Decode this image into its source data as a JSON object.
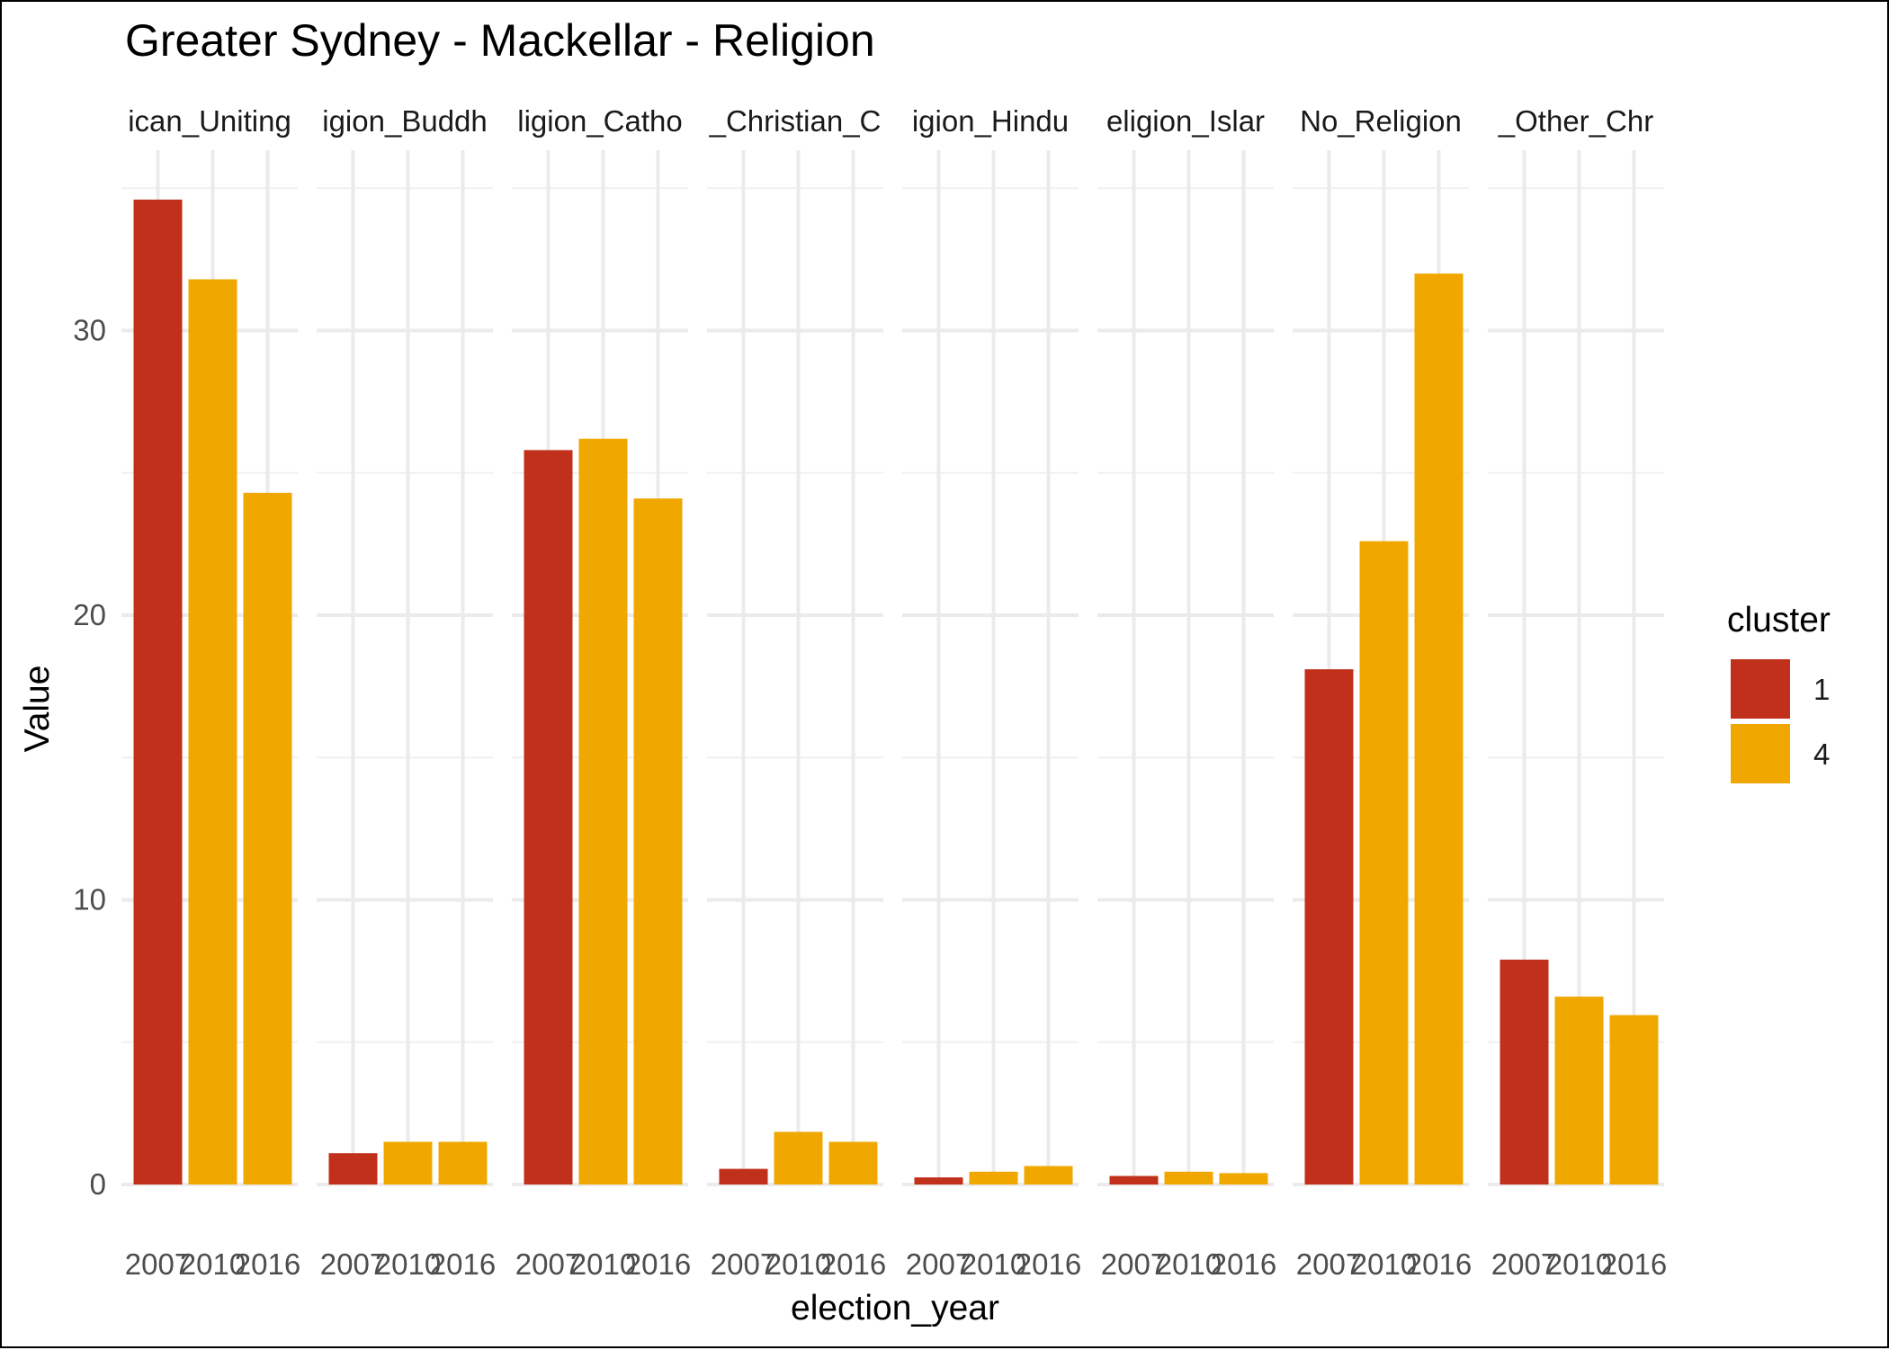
{
  "chart_data": {
    "type": "bar",
    "title": "Greater Sydney - Mackellar - Religion",
    "xlabel": "election_year",
    "ylabel": "Value",
    "ylim": [
      0,
      36
    ],
    "yticks": [
      0,
      10,
      20,
      30
    ],
    "grid": true,
    "legend": {
      "title": "cluster",
      "position": "right",
      "entries": [
        {
          "label": "1",
          "color": "#C0301A"
        },
        {
          "label": "4",
          "color": "#F0A800"
        }
      ]
    },
    "categories": [
      "2007",
      "2010",
      "2016"
    ],
    "facets": [
      {
        "label": "ican_Uniting",
        "values": [
          34.6,
          31.8,
          24.3
        ],
        "clusters": [
          "1",
          "4",
          "4"
        ]
      },
      {
        "label": "igion_Buddh",
        "values": [
          1.1,
          1.5,
          1.5
        ],
        "clusters": [
          "1",
          "4",
          "4"
        ]
      },
      {
        "label": "ligion_Catho",
        "values": [
          25.8,
          26.2,
          24.1
        ],
        "clusters": [
          "1",
          "4",
          "4"
        ]
      },
      {
        "label": "_Christian_C",
        "values": [
          0.55,
          1.85,
          1.5
        ],
        "clusters": [
          "1",
          "4",
          "4"
        ]
      },
      {
        "label": "igion_Hindu",
        "values": [
          0.25,
          0.45,
          0.65
        ],
        "clusters": [
          "1",
          "4",
          "4"
        ]
      },
      {
        "label": "eligion_Islar",
        "values": [
          0.3,
          0.45,
          0.4
        ],
        "clusters": [
          "1",
          "4",
          "4"
        ]
      },
      {
        "label": "No_Religion",
        "values": [
          18.1,
          22.6,
          32.0
        ],
        "clusters": [
          "1",
          "4",
          "4"
        ]
      },
      {
        "label": "_Other_Chr",
        "values": [
          7.9,
          6.6,
          5.95
        ],
        "clusters": [
          "1",
          "4",
          "4"
        ]
      }
    ]
  }
}
